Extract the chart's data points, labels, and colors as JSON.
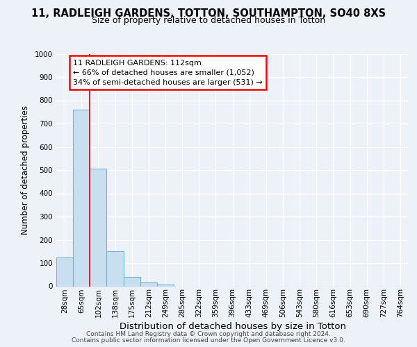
{
  "title1": "11, RADLEIGH GARDENS, TOTTON, SOUTHAMPTON, SO40 8XS",
  "title2": "Size of property relative to detached houses in Totton",
  "xlabel": "Distribution of detached houses by size in Totton",
  "ylabel": "Number of detached properties",
  "categories": [
    "28sqm",
    "65sqm",
    "102sqm",
    "138sqm",
    "175sqm",
    "212sqm",
    "249sqm",
    "285sqm",
    "322sqm",
    "359sqm",
    "396sqm",
    "433sqm",
    "469sqm",
    "506sqm",
    "543sqm",
    "580sqm",
    "616sqm",
    "653sqm",
    "690sqm",
    "727sqm",
    "764sqm"
  ],
  "values": [
    125,
    760,
    505,
    150,
    40,
    15,
    8,
    0,
    0,
    0,
    0,
    0,
    0,
    0,
    0,
    0,
    0,
    0,
    0,
    0,
    0
  ],
  "bar_color": "#c8dff0",
  "bar_edge_color": "#7aafd4",
  "ylim": [
    0,
    1000
  ],
  "yticks": [
    0,
    100,
    200,
    300,
    400,
    500,
    600,
    700,
    800,
    900,
    1000
  ],
  "red_line_x": 1.5,
  "annotation_text_line1": "11 RADLEIGH GARDENS: 112sqm",
  "annotation_text_line2": "← 66% of detached houses are smaller (1,052)",
  "annotation_text_line3": "34% of semi-detached houses are larger (531) →",
  "footer1": "Contains HM Land Registry data © Crown copyright and database right 2024.",
  "footer2": "Contains public sector information licensed under the Open Government Licence v3.0.",
  "background_color": "#edf1f8",
  "grid_color": "#ffffff",
  "title1_fontsize": 10.5,
  "title2_fontsize": 9.0,
  "xlabel_fontsize": 9.5,
  "ylabel_fontsize": 8.5,
  "tick_fontsize": 7.5,
  "annotation_fontsize": 8.0,
  "footer_fontsize": 6.5
}
